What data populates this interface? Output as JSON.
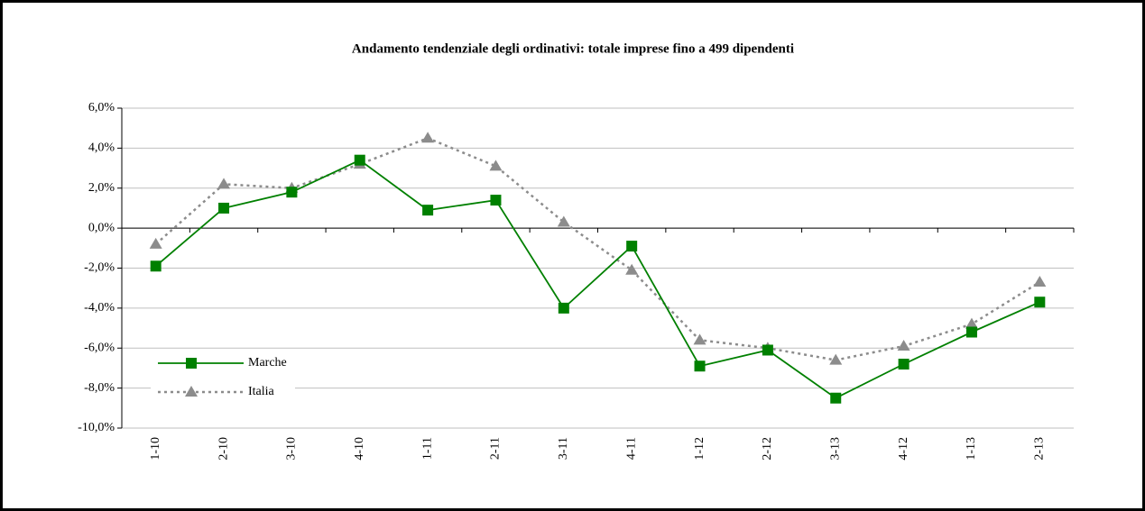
{
  "chart_data": {
    "type": "line",
    "title": "Andamento tendenziale degli ordinativi: totale imprese fino a 499 dipendenti",
    "categories": [
      "1-10",
      "2-10",
      "3-10",
      "4-10",
      "1-11",
      "2-11",
      "3-11",
      "4-11",
      "1-12",
      "2-12",
      "3-13",
      "4-12",
      "1-13",
      "2-13"
    ],
    "series": [
      {
        "name": "Marche",
        "color": "#008000",
        "marker": "square",
        "dash": "solid",
        "values": [
          -1.9,
          1.0,
          1.8,
          3.4,
          0.9,
          1.4,
          -4.0,
          -0.9,
          -6.9,
          -6.1,
          -8.5,
          -6.8,
          -5.2,
          -3.7
        ]
      },
      {
        "name": "Italia",
        "color": "#8c8c8c",
        "marker": "triangle",
        "dash": "dotted",
        "values": [
          -0.8,
          2.2,
          2.0,
          3.2,
          4.5,
          3.1,
          0.3,
          -2.1,
          -5.6,
          -6.0,
          -6.6,
          -5.9,
          -4.8,
          -2.7
        ]
      }
    ],
    "ylim": [
      -10,
      6
    ],
    "yticks": [
      {
        "value": -10,
        "label": "-10,0%"
      },
      {
        "value": -8,
        "label": "-8,0%"
      },
      {
        "value": -6,
        "label": "-6,0%"
      },
      {
        "value": -4,
        "label": "-4,0%"
      },
      {
        "value": -2,
        "label": "-2,0%"
      },
      {
        "value": 0,
        "label": "0,0%"
      },
      {
        "value": 2,
        "label": "2,0%"
      },
      {
        "value": 4,
        "label": "4,0%"
      },
      {
        "value": 6,
        "label": "6,0%"
      }
    ],
    "grid": true,
    "legend": "lower left"
  }
}
